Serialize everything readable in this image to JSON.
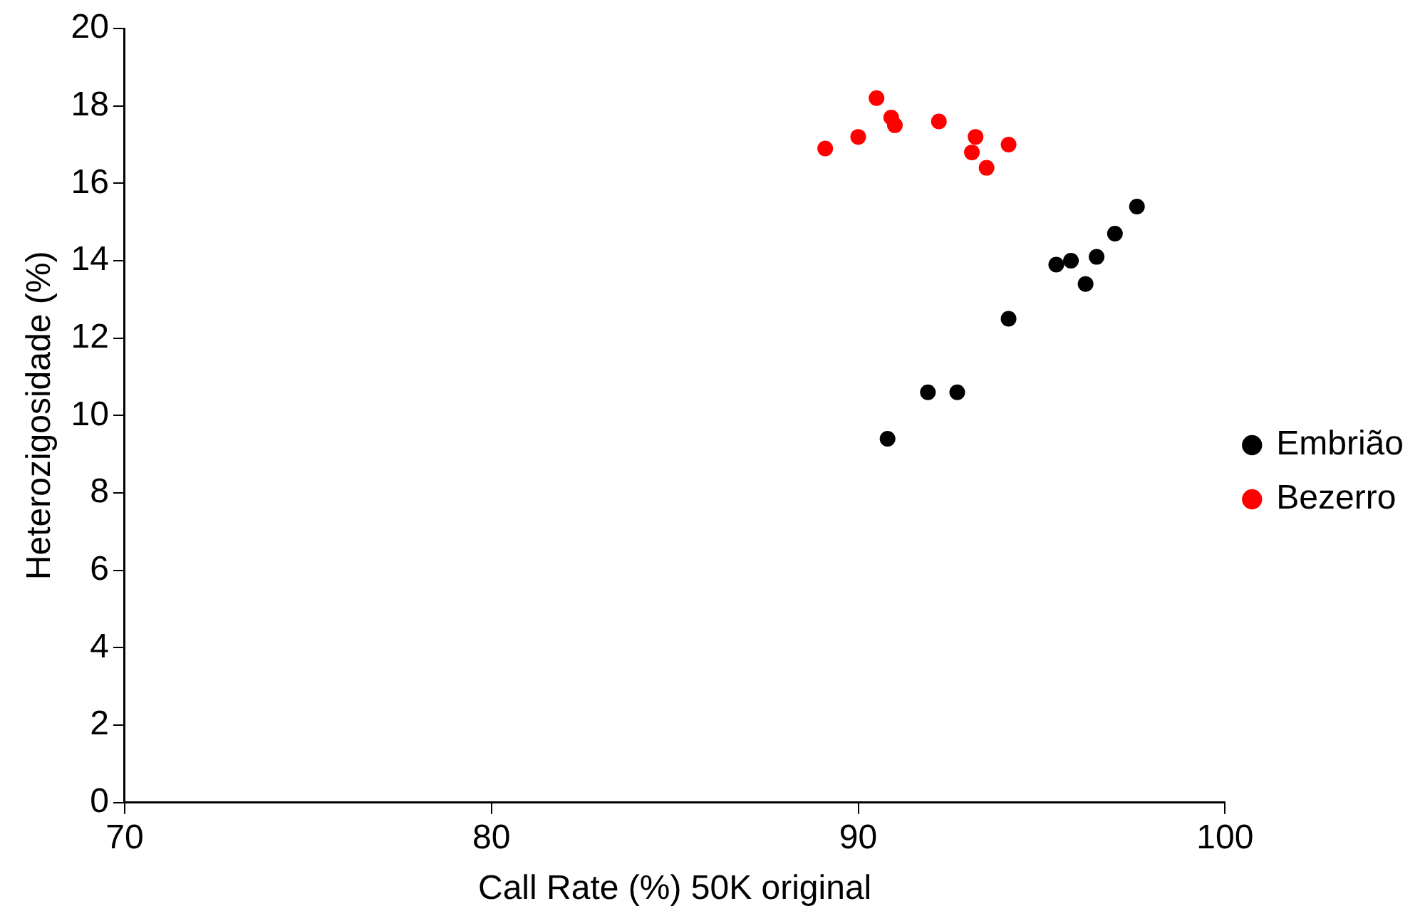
{
  "chart_data": {
    "type": "scatter",
    "xlabel": "Call Rate (%) 50K original",
    "ylabel": "Heterozigosidade (%)",
    "xlim": [
      70,
      100
    ],
    "xticks": [
      70,
      80,
      90,
      100
    ],
    "ylim": [
      0,
      20
    ],
    "yticks": [
      0,
      2,
      4,
      6,
      8,
      10,
      12,
      14,
      16,
      18,
      20
    ],
    "grid": false,
    "legend": "right",
    "marker": "circle",
    "series": [
      {
        "name": "Embrião",
        "color": "#000000",
        "x": [
          90.8,
          91.9,
          92.7,
          94.1,
          95.4,
          95.8,
          96.2,
          96.5,
          97.0,
          97.6
        ],
        "values": [
          9.4,
          10.6,
          10.6,
          12.5,
          13.9,
          14.0,
          13.4,
          14.1,
          14.7,
          15.4
        ]
      },
      {
        "name": "Bezerro",
        "color": "#ff0000",
        "x": [
          89.1,
          90.0,
          90.5,
          90.9,
          91.0,
          92.2,
          93.2,
          93.1,
          93.5,
          94.1
        ],
        "values": [
          16.9,
          17.2,
          18.2,
          17.7,
          17.5,
          17.6,
          17.2,
          16.8,
          16.4,
          17.0
        ]
      }
    ]
  }
}
